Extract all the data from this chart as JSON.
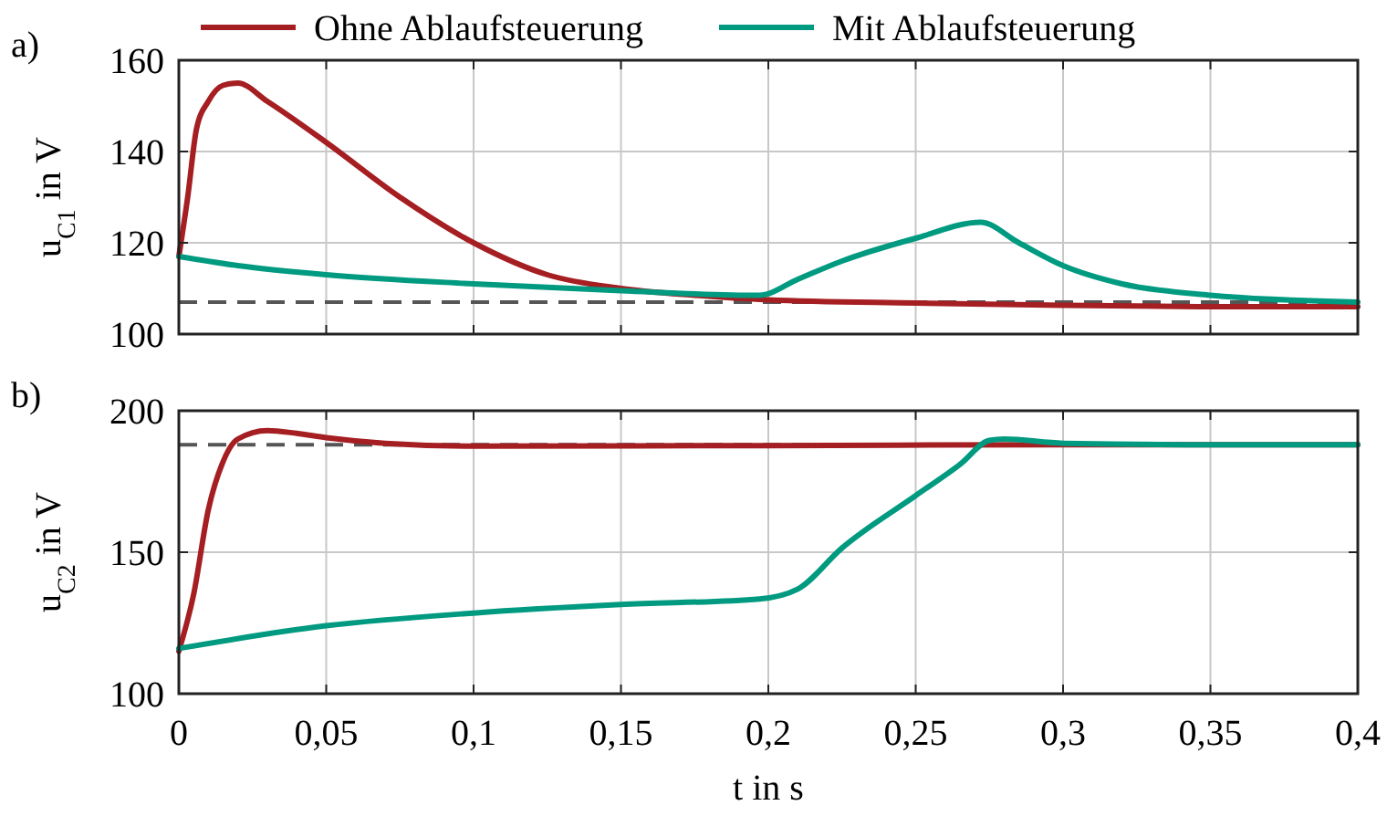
{
  "chart_data": [
    {
      "type": "line",
      "ylabel": "u$_{C1}$ in V",
      "annotations": [
        "a)"
      ],
      "legend": "top",
      "grid": true,
      "tick_labels": "y",
      "xlim": [
        0,
        0.4
      ],
      "xticks": [
        0,
        0.05,
        0.1,
        0.15,
        0.2,
        0.25,
        0.3,
        0.35,
        0.4
      ],
      "ylim": [
        100,
        160
      ],
      "yticks": [
        100,
        120,
        140,
        160
      ],
      "ref_lines": [
        {
          "axis": "y",
          "value": 107,
          "color": "#555555",
          "line_style": "dashed"
        }
      ],
      "series": [
        {
          "name": "Ohne Ablaufsteuerung",
          "color": "#a51e22",
          "x": [
            0,
            0.003,
            0.006,
            0.01,
            0.015,
            0.02,
            0.03,
            0.05,
            0.075,
            0.1,
            0.125,
            0.15,
            0.175,
            0.2,
            0.25,
            0.3,
            0.35,
            0.4
          ],
          "values": [
            117,
            130,
            145,
            151,
            154.5,
            155,
            151,
            142,
            130,
            120,
            113,
            110,
            108.5,
            107.5,
            106.8,
            106.3,
            106,
            106
          ]
        },
        {
          "name": "Mit Ablaufsteuerung",
          "color": "#009a80",
          "x": [
            0,
            0.02,
            0.05,
            0.1,
            0.15,
            0.197,
            0.21,
            0.225,
            0.25,
            0.272,
            0.285,
            0.3,
            0.32,
            0.35,
            0.4
          ],
          "values": [
            117,
            115,
            113,
            111,
            109.5,
            108.5,
            112,
            116,
            121,
            124.5,
            120,
            115,
            111,
            108.5,
            107
          ]
        }
      ]
    },
    {
      "type": "line",
      "ylabel": "u$_{C2}$ in V",
      "xlabel": "t in s",
      "annotations": [
        "b)"
      ],
      "grid": true,
      "xlim": [
        0,
        0.4
      ],
      "xticks": [
        {
          "value": 0,
          "label": "0"
        },
        {
          "value": 0.05,
          "label": "0,05"
        },
        {
          "value": 0.1,
          "label": "0,1"
        },
        {
          "value": 0.15,
          "label": "0,15"
        },
        {
          "value": 0.2,
          "label": "0,2"
        },
        {
          "value": 0.25,
          "label": "0,25"
        },
        {
          "value": 0.3,
          "label": "0,3"
        },
        {
          "value": 0.35,
          "label": "0,35"
        },
        {
          "value": 0.4,
          "label": "0,4"
        }
      ],
      "ylim": [
        100,
        200
      ],
      "yticks": [
        100,
        150,
        200
      ],
      "ref_lines": [
        {
          "axis": "y",
          "value": 188,
          "color": "#555555",
          "line_style": "dashed"
        }
      ],
      "series": [
        {
          "color": "#a51e22",
          "x": [
            0,
            0.005,
            0.01,
            0.015,
            0.02,
            0.03,
            0.04,
            0.05,
            0.07,
            0.1,
            0.2,
            0.3,
            0.4
          ],
          "values": [
            115,
            135,
            165,
            182,
            190,
            193,
            192,
            190.5,
            188.5,
            187.5,
            187.7,
            188,
            188
          ]
        },
        {
          "color": "#009a80",
          "x": [
            0,
            0.05,
            0.1,
            0.15,
            0.197,
            0.21,
            0.225,
            0.25,
            0.265,
            0.275,
            0.28,
            0.3,
            0.35,
            0.4
          ],
          "values": [
            116,
            124,
            128.5,
            131.5,
            133.5,
            137,
            151.5,
            170,
            181,
            189.5,
            190,
            188.5,
            188,
            188
          ]
        }
      ]
    }
  ]
}
